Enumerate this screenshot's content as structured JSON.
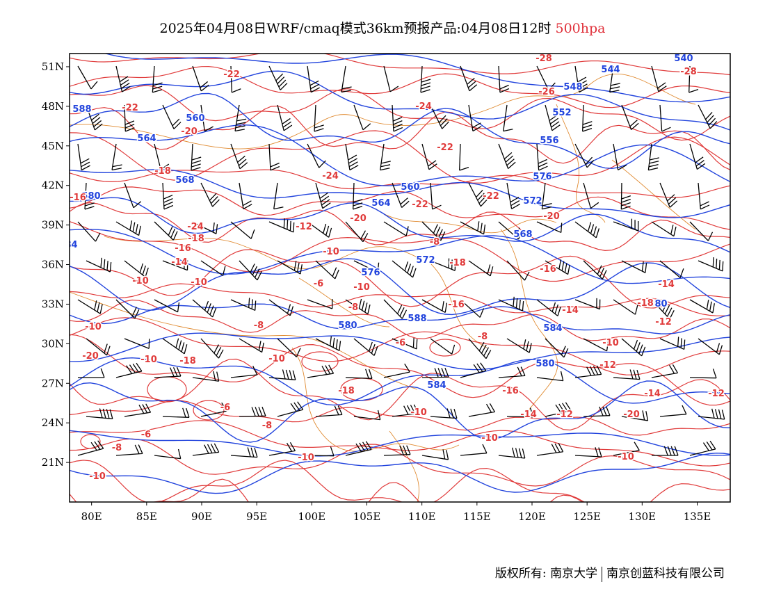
{
  "title": {
    "main": "2025年04月08日WRF/cmaq模式36km预报产品:04月08日12时",
    "level": "500hpa"
  },
  "colors": {
    "height_contour": "#2244dd",
    "temperature_contour": "#e03a3a",
    "border": "#e08a30",
    "barb": "#000000",
    "level_text": "#e0303a"
  },
  "axes": {
    "x_ticks": [
      "80E",
      "85E",
      "90E",
      "95E",
      "100E",
      "105E",
      "110E",
      "115E",
      "120E",
      "125E",
      "130E",
      "135E"
    ],
    "y_ticks": [
      "51N",
      "48N",
      "45N",
      "42N",
      "39N",
      "36N",
      "33N",
      "30N",
      "27N",
      "24N",
      "21N"
    ],
    "lon_range": [
      78,
      138
    ],
    "lat_range": [
      18,
      52
    ]
  },
  "labels": {
    "height": [
      "544",
      "540",
      "548",
      "552",
      "556",
      "560",
      "564",
      "568",
      "572",
      "576",
      "580",
      "584",
      "588",
      "560",
      "564",
      "568",
      "572",
      "576",
      "580",
      "584",
      "588",
      "580",
      "580",
      "584"
    ],
    "temperature": [
      "-22",
      "-28",
      "-28",
      "-26",
      "-22",
      "-24",
      "-22",
      "-20",
      "-24",
      "-22",
      "-18",
      "-16",
      "-20",
      "-22",
      "-24",
      "-20",
      "-18",
      "-16",
      "-14",
      "-12",
      "-10",
      "-8",
      "-18",
      "-16",
      "-14",
      "-12",
      "-10",
      "-8",
      "-6",
      "-10",
      "-10",
      "-10",
      "-6",
      "-10",
      "-8",
      "-10",
      "-12",
      "-14",
      "-16",
      "-18",
      "-20",
      "-10",
      "-10",
      "-6",
      "-8",
      "-6",
      "-8",
      "-10",
      "-10",
      "-10",
      "-12",
      "-14",
      "-16",
      "-18",
      "-8",
      "-10",
      "-12",
      "-14",
      "-20",
      "-18"
    ]
  },
  "footer": {
    "copyright_label": "版权所有:",
    "org1": "南京大学",
    "org2": "南京创蓝科技有限公司"
  }
}
